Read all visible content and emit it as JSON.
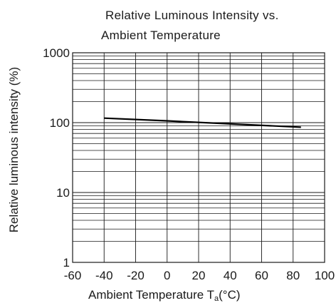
{
  "chart_data": {
    "type": "line",
    "title_line1": "Relative Luminous Intensity vs.",
    "title_line2": "Ambient Temperature",
    "ylabel": "Relative luminous intensity (%)",
    "xlabel_main": "Ambient Temperature T",
    "xlabel_sub": "a",
    "xlabel_unit": "(°C)",
    "x_ticks": [
      -60,
      -40,
      -20,
      0,
      20,
      40,
      60,
      80,
      100
    ],
    "y_ticks": [
      1,
      10,
      100,
      1000
    ],
    "xlim": [
      -60,
      100
    ],
    "ylim": [
      1,
      1000
    ],
    "y_scale": "log",
    "grid": true,
    "series": [
      {
        "x": [
          -40,
          0,
          40,
          85
        ],
        "y": [
          116,
          106,
          96,
          86
        ]
      }
    ]
  }
}
